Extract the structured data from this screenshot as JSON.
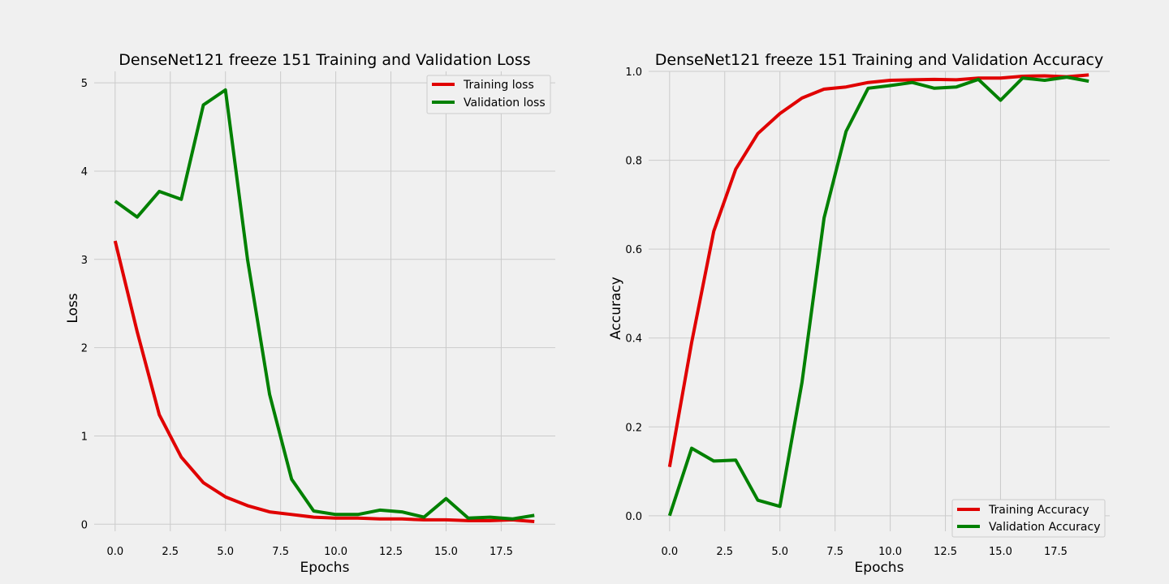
{
  "chart_data": [
    {
      "type": "line",
      "title": "DenseNet121 freeze 151 Training and Validation Loss",
      "xlabel": "Epochs",
      "ylabel": "Loss",
      "xlim": [
        -0.95,
        19.95
      ],
      "ylim": [
        -0.08,
        5.13
      ],
      "xticks": [
        0.0,
        2.5,
        5.0,
        7.5,
        10.0,
        12.5,
        15.0,
        17.5
      ],
      "xtick_labels": [
        "0.0",
        "2.5",
        "5.0",
        "7.5",
        "10.0",
        "12.5",
        "15.0",
        "17.5"
      ],
      "yticks": [
        0,
        1,
        2,
        3,
        4,
        5
      ],
      "ytick_labels": [
        "0",
        "1",
        "2",
        "3",
        "4",
        "5"
      ],
      "grid": true,
      "legend_position": "top-right",
      "x": [
        0,
        1,
        2,
        3,
        4,
        5,
        6,
        7,
        8,
        9,
        10,
        11,
        12,
        13,
        14,
        15,
        16,
        17,
        18,
        19
      ],
      "series": [
        {
          "name": "Training loss",
          "color": "#e00000",
          "values": [
            3.21,
            2.18,
            1.24,
            0.76,
            0.47,
            0.31,
            0.21,
            0.14,
            0.11,
            0.08,
            0.07,
            0.07,
            0.06,
            0.06,
            0.05,
            0.05,
            0.04,
            0.04,
            0.05,
            0.03
          ]
        },
        {
          "name": "Validation loss",
          "color": "#008000",
          "values": [
            3.66,
            3.48,
            3.77,
            3.68,
            4.75,
            4.92,
            3.0,
            1.47,
            0.51,
            0.15,
            0.11,
            0.11,
            0.16,
            0.14,
            0.08,
            0.29,
            0.07,
            0.08,
            0.06,
            0.1
          ]
        }
      ]
    },
    {
      "type": "line",
      "title": "DenseNet121 freeze 151 Training and Validation Accuracy",
      "xlabel": "Epochs",
      "ylabel": "Accuracy",
      "xlim": [
        -0.95,
        19.95
      ],
      "ylim": [
        -0.035,
        1.0
      ],
      "xticks": [
        0.0,
        2.5,
        5.0,
        7.5,
        10.0,
        12.5,
        15.0,
        17.5
      ],
      "xtick_labels": [
        "0.0",
        "2.5",
        "5.0",
        "7.5",
        "10.0",
        "12.5",
        "15.0",
        "17.5"
      ],
      "yticks": [
        0.0,
        0.2,
        0.4,
        0.6,
        0.8,
        1.0
      ],
      "ytick_labels": [
        "0.0",
        "0.2",
        "0.4",
        "0.6",
        "0.8",
        "1.0"
      ],
      "grid": true,
      "legend_position": "bottom-right",
      "x": [
        0,
        1,
        2,
        3,
        4,
        5,
        6,
        7,
        8,
        9,
        10,
        11,
        12,
        13,
        14,
        15,
        16,
        17,
        18,
        19
      ],
      "series": [
        {
          "name": "Training Accuracy",
          "color": "#e00000",
          "values": [
            0.11,
            0.39,
            0.64,
            0.78,
            0.86,
            0.905,
            0.94,
            0.96,
            0.965,
            0.975,
            0.98,
            0.981,
            0.982,
            0.981,
            0.985,
            0.985,
            0.989,
            0.99,
            0.988,
            0.992
          ]
        },
        {
          "name": "Validation Accuracy",
          "color": "#008000",
          "values": [
            0.0,
            0.152,
            0.123,
            0.125,
            0.035,
            0.021,
            0.3,
            0.67,
            0.865,
            0.962,
            0.968,
            0.975,
            0.962,
            0.965,
            0.982,
            0.935,
            0.985,
            0.98,
            0.987,
            0.978
          ]
        }
      ]
    }
  ]
}
